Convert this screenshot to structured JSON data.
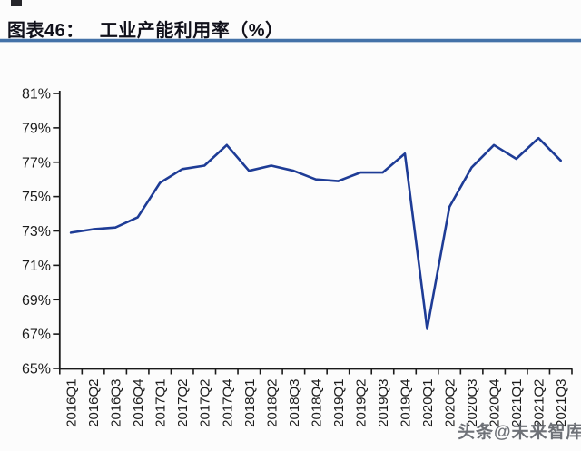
{
  "header": {
    "label": "图表46：",
    "title": "工业产能利用率（%）",
    "underline_color": "#4472a8"
  },
  "watermark": {
    "text": "头条@未来智库"
  },
  "chart_data": {
    "type": "line",
    "title": "工业产能利用率（%）",
    "series_name": "工业产能利用率",
    "categories": [
      "2016Q1",
      "2016Q2",
      "2016Q3",
      "2016Q4",
      "2017Q1",
      "2017Q2",
      "2017Q2",
      "2017Q4",
      "2018Q1",
      "2018Q2",
      "2018Q3",
      "2018Q4",
      "2019Q1",
      "2019Q2",
      "2019Q3",
      "2019Q4",
      "2020Q1",
      "2020Q2",
      "2020Q3",
      "2020Q4",
      "2021Q1",
      "2021Q2",
      "2021Q3"
    ],
    "values": [
      72.9,
      73.1,
      73.2,
      73.8,
      75.8,
      76.6,
      76.8,
      78.0,
      76.5,
      76.8,
      76.5,
      76.0,
      75.9,
      76.4,
      76.4,
      77.5,
      67.3,
      74.4,
      76.7,
      78.0,
      77.2,
      78.4,
      77.1
    ],
    "xlabel": "",
    "ylabel": "",
    "ylim": [
      65,
      81
    ],
    "ytick_step": 2,
    "ytick_labels": [
      "81%",
      "79%",
      "77%",
      "75%",
      "73%",
      "71%",
      "69%",
      "67%",
      "65%"
    ],
    "grid": false,
    "legend": "none",
    "line_color": "#1e3c96",
    "axis_color": "#1a1a1a",
    "label_color": "#1b1b1b"
  }
}
